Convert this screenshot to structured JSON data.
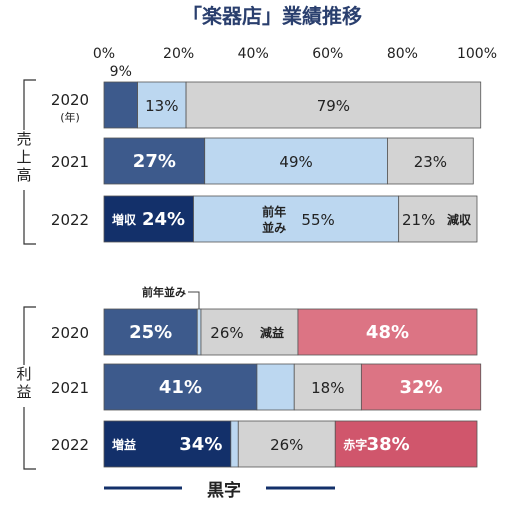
{
  "chart_data": {
    "type": "bar",
    "stacked": true,
    "orientation": "horizontal",
    "title": "「楽器店」業績推移",
    "xlim": [
      0,
      100
    ],
    "x_ticks": [
      "0%",
      "20%",
      "40%",
      "60%",
      "80%",
      "100%"
    ],
    "groups": [
      {
        "label": "売上高",
        "rows": [
          {
            "label": "2020",
            "sublabel": "(年)",
            "segments": [
              {
                "value": 9,
                "color": "#3d5a8c",
                "label": "9%",
                "label_pos": "above"
              },
              {
                "value": 13,
                "color": "#bcd7f0",
                "label": "13%"
              },
              {
                "value": 79,
                "color": "#d3d3d3",
                "label": "79%"
              }
            ]
          },
          {
            "label": "2021",
            "segments": [
              {
                "value": 27,
                "color": "#3d5a8c",
                "label": "27%"
              },
              {
                "value": 49,
                "color": "#bcd7f0",
                "label": "49%"
              },
              {
                "value": 23,
                "color": "#d3d3d3",
                "label": "23%"
              }
            ]
          },
          {
            "label": "2022",
            "segments": [
              {
                "value": 24,
                "color": "#13306a",
                "label": "24%",
                "tag": "増収"
              },
              {
                "value": 55,
                "color": "#bcd7f0",
                "label": "55%",
                "tag": "前年並み"
              },
              {
                "value": 21,
                "color": "#d3d3d3",
                "label": "21%",
                "tag": "減収"
              }
            ]
          }
        ]
      },
      {
        "label": "利益",
        "rows": [
          {
            "label": "2020",
            "segments": [
              {
                "value": 25,
                "color": "#3d5a8c",
                "label": "25%"
              },
              {
                "value": 1,
                "color": "#bcd7f0",
                "label": "",
                "callout": "前年並み"
              },
              {
                "value": 26,
                "color": "#d3d3d3",
                "label": "26%",
                "tag": "減益"
              },
              {
                "value": 48,
                "color": "#dc7484",
                "label": "48%"
              }
            ]
          },
          {
            "label": "2021",
            "segments": [
              {
                "value": 41,
                "color": "#3d5a8c",
                "label": "41%"
              },
              {
                "value": 10,
                "color": "#bcd7f0",
                "label": ""
              },
              {
                "value": 18,
                "color": "#d3d3d3",
                "label": "18%"
              },
              {
                "value": 32,
                "color": "#dc7484",
                "label": "32%"
              }
            ]
          },
          {
            "label": "2022",
            "segments": [
              {
                "value": 34,
                "color": "#13306a",
                "label": "34%",
                "tag": "増益"
              },
              {
                "value": 2,
                "color": "#bcd7f0",
                "label": ""
              },
              {
                "value": 26,
                "color": "#d3d3d3",
                "label": "26%"
              },
              {
                "value": 38,
                "color": "#d0566c",
                "label": "38%",
                "tag": "赤字"
              }
            ]
          }
        ]
      }
    ],
    "bottom_bracket_label": "黒字",
    "bottom_bracket_color": "#13306a"
  }
}
